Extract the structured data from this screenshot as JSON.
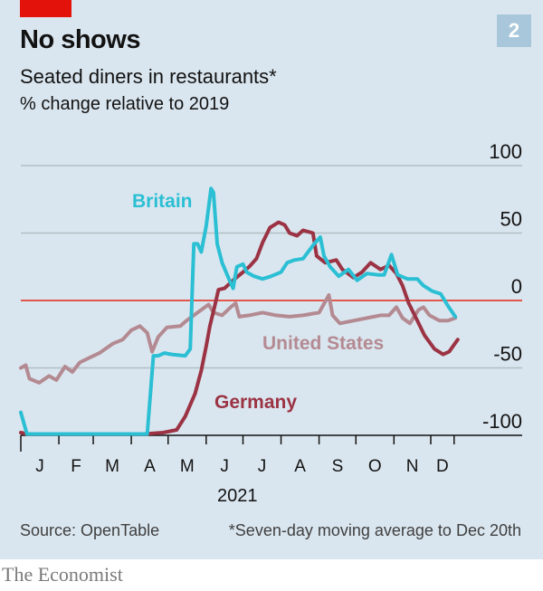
{
  "header": {
    "chart_number": "2",
    "title": "No shows",
    "subtitle": "Seated diners in restaurants*",
    "unit": "% change relative to 2019"
  },
  "footer": {
    "source": "Source: OpenTable",
    "note": "*Seven-day moving average to Dec 20th",
    "brand": "The Economist"
  },
  "colors": {
    "background": "#dae6ef",
    "accent_red": "#e3120b",
    "zero_line": "#e2574c",
    "grid": "#b3bec5",
    "britain": "#2bbfd4",
    "germany": "#9b3344",
    "united_states": "#b48a92"
  },
  "chart_data": {
    "type": "line",
    "title": "No shows",
    "subtitle": "Seated diners in restaurants*",
    "ylabel": "% change relative to 2019",
    "xlabel": "2021",
    "ylim": [
      -100,
      100
    ],
    "yticks": [
      100,
      50,
      0,
      -50,
      -100
    ],
    "ytick_labels": [
      "100",
      "50",
      "0",
      "-50",
      "-100"
    ],
    "x_unit": "day of year 2021",
    "xlim": [
      0,
      356
    ],
    "month_tick_days": [
      0,
      31,
      59,
      90,
      120,
      151,
      181,
      212,
      243,
      273,
      304,
      334,
      353
    ],
    "month_labels": [
      "J",
      "F",
      "M",
      "A",
      "M",
      "J",
      "J",
      "A",
      "S",
      "O",
      "N",
      "D"
    ],
    "grid": true,
    "legend": "inline labels",
    "series": [
      {
        "name": "Britain",
        "label": "Britain",
        "color_key": "britain",
        "points": [
          [
            0,
            -83
          ],
          [
            5,
            -99
          ],
          [
            50,
            -99
          ],
          [
            103,
            -99
          ],
          [
            108,
            -41
          ],
          [
            112,
            -41
          ],
          [
            117,
            -39
          ],
          [
            123,
            -40
          ],
          [
            134,
            -41
          ],
          [
            138,
            -36
          ],
          [
            141,
            42
          ],
          [
            144,
            42
          ],
          [
            147,
            36
          ],
          [
            151,
            55
          ],
          [
            155,
            83
          ],
          [
            157,
            80
          ],
          [
            160,
            42
          ],
          [
            164,
            28
          ],
          [
            170,
            15
          ],
          [
            173,
            9
          ],
          [
            176,
            25
          ],
          [
            181,
            27
          ],
          [
            184,
            21
          ],
          [
            190,
            18
          ],
          [
            197,
            16
          ],
          [
            204,
            18
          ],
          [
            212,
            21
          ],
          [
            217,
            28
          ],
          [
            223,
            30
          ],
          [
            230,
            31
          ],
          [
            234,
            36
          ],
          [
            239,
            42
          ],
          [
            244,
            47
          ],
          [
            247,
            33
          ],
          [
            252,
            25
          ],
          [
            259,
            18
          ],
          [
            267,
            23
          ],
          [
            274,
            15
          ],
          [
            282,
            20
          ],
          [
            291,
            19
          ],
          [
            296,
            19
          ],
          [
            302,
            34
          ],
          [
            307,
            19
          ],
          [
            315,
            16
          ],
          [
            323,
            16
          ],
          [
            328,
            11
          ],
          [
            335,
            7
          ],
          [
            342,
            5
          ],
          [
            348,
            -4
          ],
          [
            354,
            -12
          ]
        ]
      },
      {
        "name": "Germany",
        "label": "Germany",
        "color_key": "germany",
        "points": [
          [
            0,
            -98
          ],
          [
            5,
            -99
          ],
          [
            60,
            -99
          ],
          [
            101,
            -99
          ],
          [
            116,
            -98
          ],
          [
            127,
            -96
          ],
          [
            134,
            -86
          ],
          [
            142,
            -69
          ],
          [
            147,
            -52
          ],
          [
            151,
            -34
          ],
          [
            154,
            -19
          ],
          [
            158,
            -4
          ],
          [
            161,
            8
          ],
          [
            166,
            9
          ],
          [
            173,
            15
          ],
          [
            181,
            21
          ],
          [
            186,
            25
          ],
          [
            192,
            31
          ],
          [
            197,
            43
          ],
          [
            203,
            54
          ],
          [
            210,
            58
          ],
          [
            215,
            56
          ],
          [
            219,
            50
          ],
          [
            225,
            48
          ],
          [
            230,
            52
          ],
          [
            238,
            50
          ],
          [
            241,
            33
          ],
          [
            248,
            28
          ],
          [
            257,
            30
          ],
          [
            262,
            23
          ],
          [
            271,
            17
          ],
          [
            278,
            21
          ],
          [
            285,
            28
          ],
          [
            293,
            23
          ],
          [
            300,
            26
          ],
          [
            306,
            20
          ],
          [
            311,
            11
          ],
          [
            316,
            -2
          ],
          [
            322,
            -13
          ],
          [
            329,
            -26
          ],
          [
            337,
            -36
          ],
          [
            344,
            -40
          ],
          [
            349,
            -38
          ],
          [
            356,
            -29
          ]
        ]
      },
      {
        "name": "United States",
        "label": "United States",
        "color_key": "united_states",
        "points": [
          [
            0,
            -50
          ],
          [
            4,
            -48
          ],
          [
            7,
            -58
          ],
          [
            15,
            -61
          ],
          [
            23,
            -56
          ],
          [
            29,
            -59
          ],
          [
            36,
            -49
          ],
          [
            42,
            -53
          ],
          [
            48,
            -46
          ],
          [
            57,
            -42
          ],
          [
            64,
            -39
          ],
          [
            75,
            -32
          ],
          [
            83,
            -29
          ],
          [
            90,
            -22
          ],
          [
            97,
            -19
          ],
          [
            103,
            -24
          ],
          [
            107,
            -38
          ],
          [
            112,
            -27
          ],
          [
            119,
            -20
          ],
          [
            130,
            -19
          ],
          [
            135,
            -15
          ],
          [
            141,
            -11
          ],
          [
            147,
            -7
          ],
          [
            153,
            -3
          ],
          [
            157,
            -9
          ],
          [
            164,
            -11
          ],
          [
            171,
            -5
          ],
          [
            175,
            -2
          ],
          [
            178,
            -12
          ],
          [
            186,
            -11
          ],
          [
            197,
            -9
          ],
          [
            208,
            -11
          ],
          [
            219,
            -12
          ],
          [
            230,
            -11
          ],
          [
            243,
            -9
          ],
          [
            251,
            4
          ],
          [
            254,
            -11
          ],
          [
            260,
            -17
          ],
          [
            271,
            -15
          ],
          [
            282,
            -13
          ],
          [
            293,
            -11
          ],
          [
            300,
            -11
          ],
          [
            306,
            -5
          ],
          [
            311,
            -13
          ],
          [
            317,
            -17
          ],
          [
            324,
            -7
          ],
          [
            328,
            -5
          ],
          [
            333,
            -11
          ],
          [
            341,
            -15
          ],
          [
            348,
            -15
          ],
          [
            354,
            -13
          ]
        ]
      }
    ]
  }
}
